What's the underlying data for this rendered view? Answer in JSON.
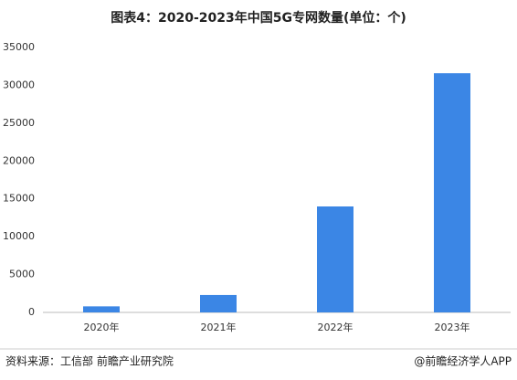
{
  "chart_data": {
    "type": "bar",
    "title": "图表4：2020-2023年中国5G专网数量(单位：个)",
    "categories": [
      "2020年",
      "2021年",
      "2022年",
      "2023年"
    ],
    "values": [
      800,
      2300,
      14000,
      31600
    ],
    "color": "#3b86e5",
    "ylim": [
      0,
      35000
    ],
    "yticks": [
      0,
      5000,
      10000,
      15000,
      20000,
      25000,
      30000,
      35000
    ],
    "grid": false
  },
  "footer": {
    "source": "资料来源：工信部 前瞻产业研究院",
    "credit": "@前瞻经济学人APP"
  }
}
